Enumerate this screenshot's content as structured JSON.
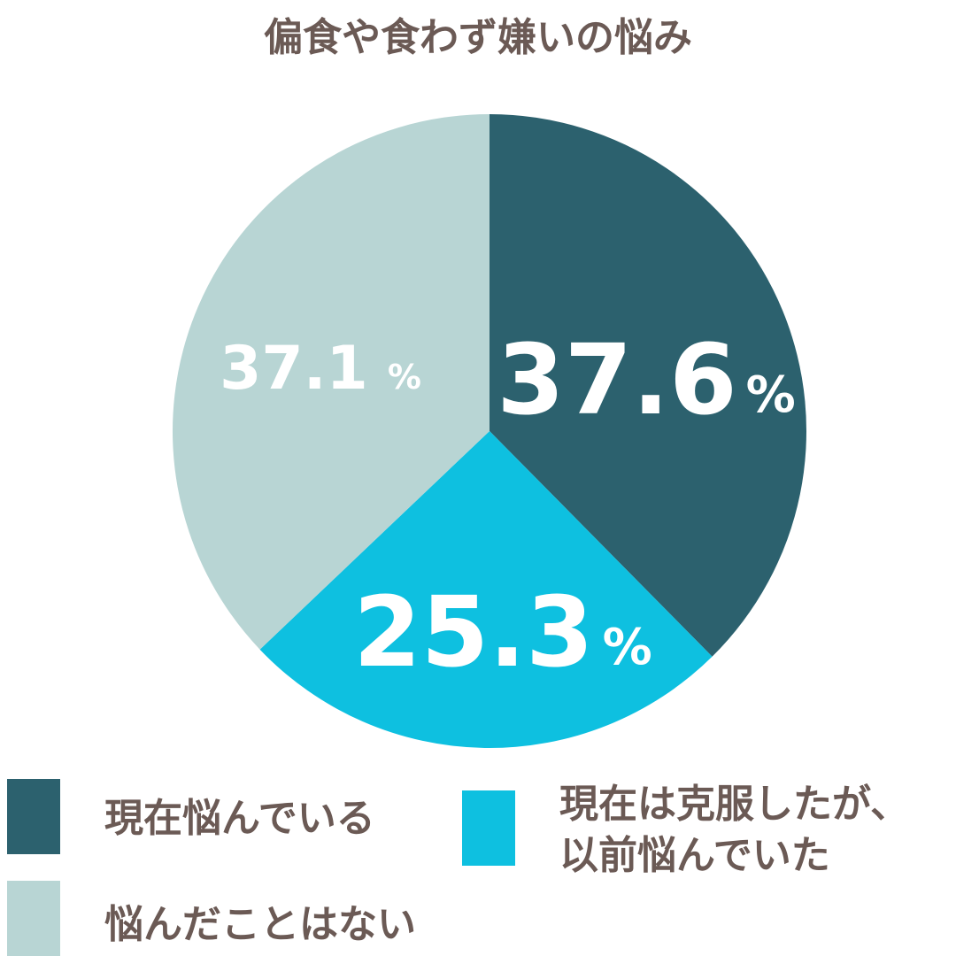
{
  "chart_data": {
    "type": "pie",
    "title": "偏食や食わず嫌いの悩み",
    "categories": [
      "現在悩んでいる",
      "現在は克服したが、以前悩んでいた",
      "悩んだことはない"
    ],
    "values": [
      37.6,
      25.3,
      37.1
    ],
    "value_labels": [
      "37.6%",
      "25.3%",
      "37.1%"
    ],
    "colors": [
      "#2c616e",
      "#0ec0e0",
      "#b8d5d4"
    ]
  }
}
